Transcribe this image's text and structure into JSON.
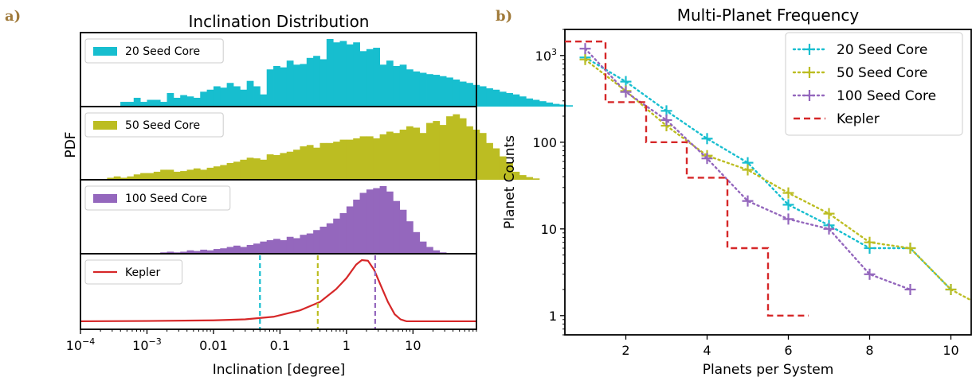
{
  "figure": {
    "panel_a_letter": "a)",
    "panel_b_letter": "b)"
  },
  "chart_data": [
    {
      "type": "histogram",
      "title": "Inclination Distribution",
      "xlabel": "Inclination [degree]",
      "ylabel": "PDF",
      "xscale": "log",
      "xlim": [
        0.0001,
        90
      ],
      "xticks": [
        {
          "value": 0.0001,
          "label": "10",
          "sup": "−4"
        },
        {
          "value": 0.001,
          "label": "10",
          "sup": "−3"
        },
        {
          "value": 0.01,
          "label": "0.01",
          "sup": ""
        },
        {
          "value": 0.1,
          "label": "0.1",
          "sup": ""
        },
        {
          "value": 1,
          "label": "1",
          "sup": ""
        },
        {
          "value": 10,
          "label": "10",
          "sup": ""
        }
      ],
      "colors": {
        "seed20": "#17becf",
        "seed50": "#bcbd22",
        "seed100": "#9467bd",
        "kepler": "#d62728"
      },
      "panels": [
        {
          "name": "20 Seed Core",
          "log_x_start": -3.4,
          "bin_width_dex": 0.1,
          "values": [
            0.07,
            0.07,
            0.13,
            0.07,
            0.1,
            0.1,
            0.07,
            0.2,
            0.13,
            0.17,
            0.15,
            0.13,
            0.22,
            0.25,
            0.3,
            0.28,
            0.35,
            0.3,
            0.25,
            0.38,
            0.3,
            0.18,
            0.55,
            0.6,
            0.58,
            0.68,
            0.62,
            0.63,
            0.72,
            0.75,
            0.7,
            1.0,
            0.95,
            0.97,
            0.92,
            0.95,
            0.82,
            0.85,
            0.87,
            0.62,
            0.68,
            0.6,
            0.62,
            0.55,
            0.52,
            0.5,
            0.48,
            0.47,
            0.45,
            0.43,
            0.4,
            0.37,
            0.35,
            0.32,
            0.3,
            0.27,
            0.25,
            0.22,
            0.2,
            0.18,
            0.15,
            0.12,
            0.1,
            0.08,
            0.06,
            0.04,
            0.03,
            0.02
          ]
        },
        {
          "name": "50 Seed Core",
          "log_x_start": -3.6,
          "bin_width_dex": 0.1,
          "values": [
            0.03,
            0.05,
            0.03,
            0.05,
            0.08,
            0.1,
            0.1,
            0.12,
            0.15,
            0.15,
            0.12,
            0.13,
            0.15,
            0.17,
            0.15,
            0.18,
            0.2,
            0.22,
            0.25,
            0.27,
            0.3,
            0.33,
            0.32,
            0.3,
            0.38,
            0.37,
            0.4,
            0.42,
            0.45,
            0.5,
            0.52,
            0.48,
            0.55,
            0.55,
            0.57,
            0.6,
            0.6,
            0.62,
            0.65,
            0.65,
            0.62,
            0.68,
            0.72,
            0.7,
            0.75,
            0.8,
            0.78,
            0.7,
            0.85,
            0.88,
            0.82,
            0.95,
            0.98,
            0.92,
            0.8,
            0.75,
            0.7,
            0.55,
            0.47,
            0.35,
            0.25,
            0.12,
            0.07,
            0.04,
            0.02
          ]
        },
        {
          "name": "100 Seed Core",
          "log_x_start": -2.8,
          "bin_width_dex": 0.1,
          "values": [
            0.02,
            0.03,
            0.02,
            0.03,
            0.05,
            0.04,
            0.06,
            0.05,
            0.07,
            0.08,
            0.1,
            0.12,
            0.1,
            0.13,
            0.15,
            0.18,
            0.2,
            0.22,
            0.2,
            0.25,
            0.23,
            0.28,
            0.3,
            0.35,
            0.4,
            0.45,
            0.52,
            0.6,
            0.7,
            0.8,
            0.9,
            0.95,
            0.97,
            1.0,
            0.92,
            0.78,
            0.65,
            0.48,
            0.32,
            0.18,
            0.1,
            0.05,
            0.02
          ]
        },
        {
          "name": "Kepler",
          "curve": [
            [
              0.0001,
              0.05
            ],
            [
              0.001,
              0.055
            ],
            [
              0.01,
              0.065
            ],
            [
              0.03,
              0.08
            ],
            [
              0.08,
              0.12
            ],
            [
              0.2,
              0.22
            ],
            [
              0.4,
              0.35
            ],
            [
              0.7,
              0.55
            ],
            [
              1.0,
              0.72
            ],
            [
              1.4,
              0.93
            ],
            [
              1.7,
              1.0
            ],
            [
              2.1,
              0.99
            ],
            [
              2.6,
              0.85
            ],
            [
              3.3,
              0.6
            ],
            [
              4.2,
              0.35
            ],
            [
              5.3,
              0.16
            ],
            [
              6.5,
              0.08
            ],
            [
              8.0,
              0.05
            ],
            [
              10,
              0.05
            ],
            [
              90,
              0.05
            ]
          ],
          "vlines": [
            {
              "x": 0.05,
              "color": "#17becf"
            },
            {
              "x": 0.37,
              "color": "#bcbd22"
            },
            {
              "x": 2.7,
              "color": "#9467bd"
            }
          ]
        }
      ]
    },
    {
      "type": "line",
      "title": "Multi-Planet Frequency",
      "xlabel": "Planets per System",
      "ylabel": "Planet Counts",
      "xlim": [
        0.5,
        10.5
      ],
      "ylim": [
        0.6,
        2000
      ],
      "yscale": "log",
      "xticks": [
        2,
        4,
        6,
        8,
        10
      ],
      "yticks": [
        {
          "value": 1,
          "label": "1",
          "sup": ""
        },
        {
          "value": 10,
          "label": "10",
          "sup": ""
        },
        {
          "value": 100,
          "label": "100",
          "sup": ""
        },
        {
          "value": 1000,
          "label": "10",
          "sup": "3"
        }
      ],
      "legend": "top-right",
      "series": [
        {
          "name": "20 Seed Core",
          "color": "#17becf",
          "x": [
            1,
            2,
            3,
            4,
            5,
            6,
            7,
            8,
            9,
            10
          ],
          "y": [
            950,
            500,
            230,
            110,
            58,
            19,
            11,
            6,
            6,
            2
          ]
        },
        {
          "name": "50 Seed Core",
          "color": "#bcbd22",
          "x": [
            1,
            2,
            3,
            4,
            5,
            6,
            7,
            8,
            9,
            10
          ],
          "y": [
            900,
            390,
            155,
            70,
            48,
            26,
            15,
            7,
            6,
            2
          ],
          "tail_to": [
            10.5,
            1.5
          ]
        },
        {
          "name": "100 Seed Core",
          "color": "#9467bd",
          "x": [
            1,
            2,
            3,
            4,
            5,
            6,
            7,
            8,
            9
          ],
          "y": [
            1200,
            380,
            180,
            65,
            21,
            13,
            10,
            3,
            2
          ]
        },
        {
          "name": "Kepler",
          "color": "#d62728",
          "step": true,
          "x": [
            1,
            2,
            3,
            4,
            5,
            6
          ],
          "y": [
            1450,
            290,
            100,
            39,
            6,
            1
          ]
        }
      ]
    }
  ]
}
